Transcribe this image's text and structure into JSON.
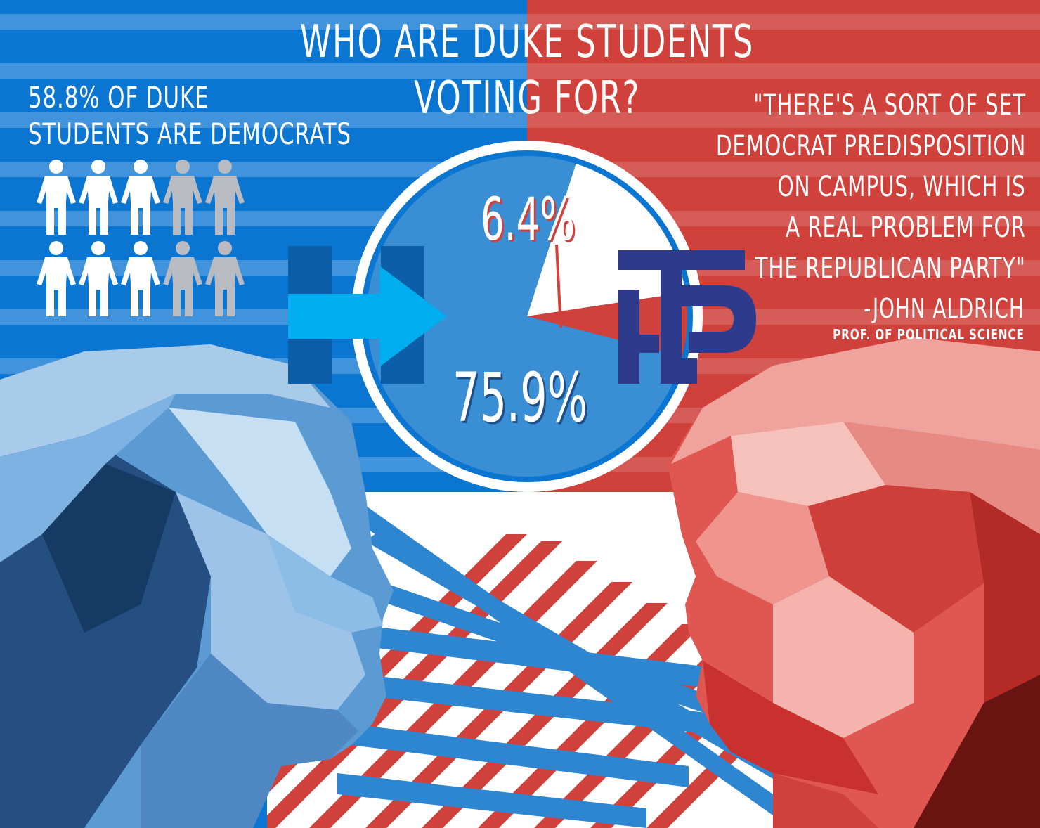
{
  "title": {
    "line1": "Who are Duke students",
    "line2": "voting for?"
  },
  "stat": {
    "line1": "58.8% of Duke",
    "line2": "students are democrats",
    "people_total": 10,
    "people_highlighted": 6
  },
  "quote": {
    "lines": [
      "\"There's a sort of set",
      "Democrat predisposition",
      "on campus, which is",
      "a real problem for",
      "the Republican Party\""
    ],
    "author": "-John Aldrich",
    "role": "Prof. of political science"
  },
  "colors": {
    "blue_bg": "#0b76d1",
    "red_bg": "#d0413c",
    "pie_blue": "#3a8ed3",
    "pie_red": "#d0413c",
    "pie_white": "#ffffff",
    "stripe_blue": "#2f86d0",
    "stripe_red": "#d0413c",
    "clinton_logo_blue": "#0d5ea8",
    "clinton_logo_arrow": "#00aeef",
    "trump_logo": "#2e3a8c"
  },
  "icons": [
    "clinton-campaign-logo-icon",
    "trump-pence-logo-icon",
    "person-icon"
  ],
  "chart_data": {
    "type": "pie",
    "title": "Who are Duke students voting for?",
    "slices": [
      {
        "value": 75.9,
        "label": "75.9%",
        "color": "#3a8ed3"
      },
      {
        "value": 6.4,
        "label": "6.4%",
        "color": "#d0413c"
      },
      {
        "value": 17.7,
        "label": "",
        "color": "#ffffff"
      }
    ]
  }
}
